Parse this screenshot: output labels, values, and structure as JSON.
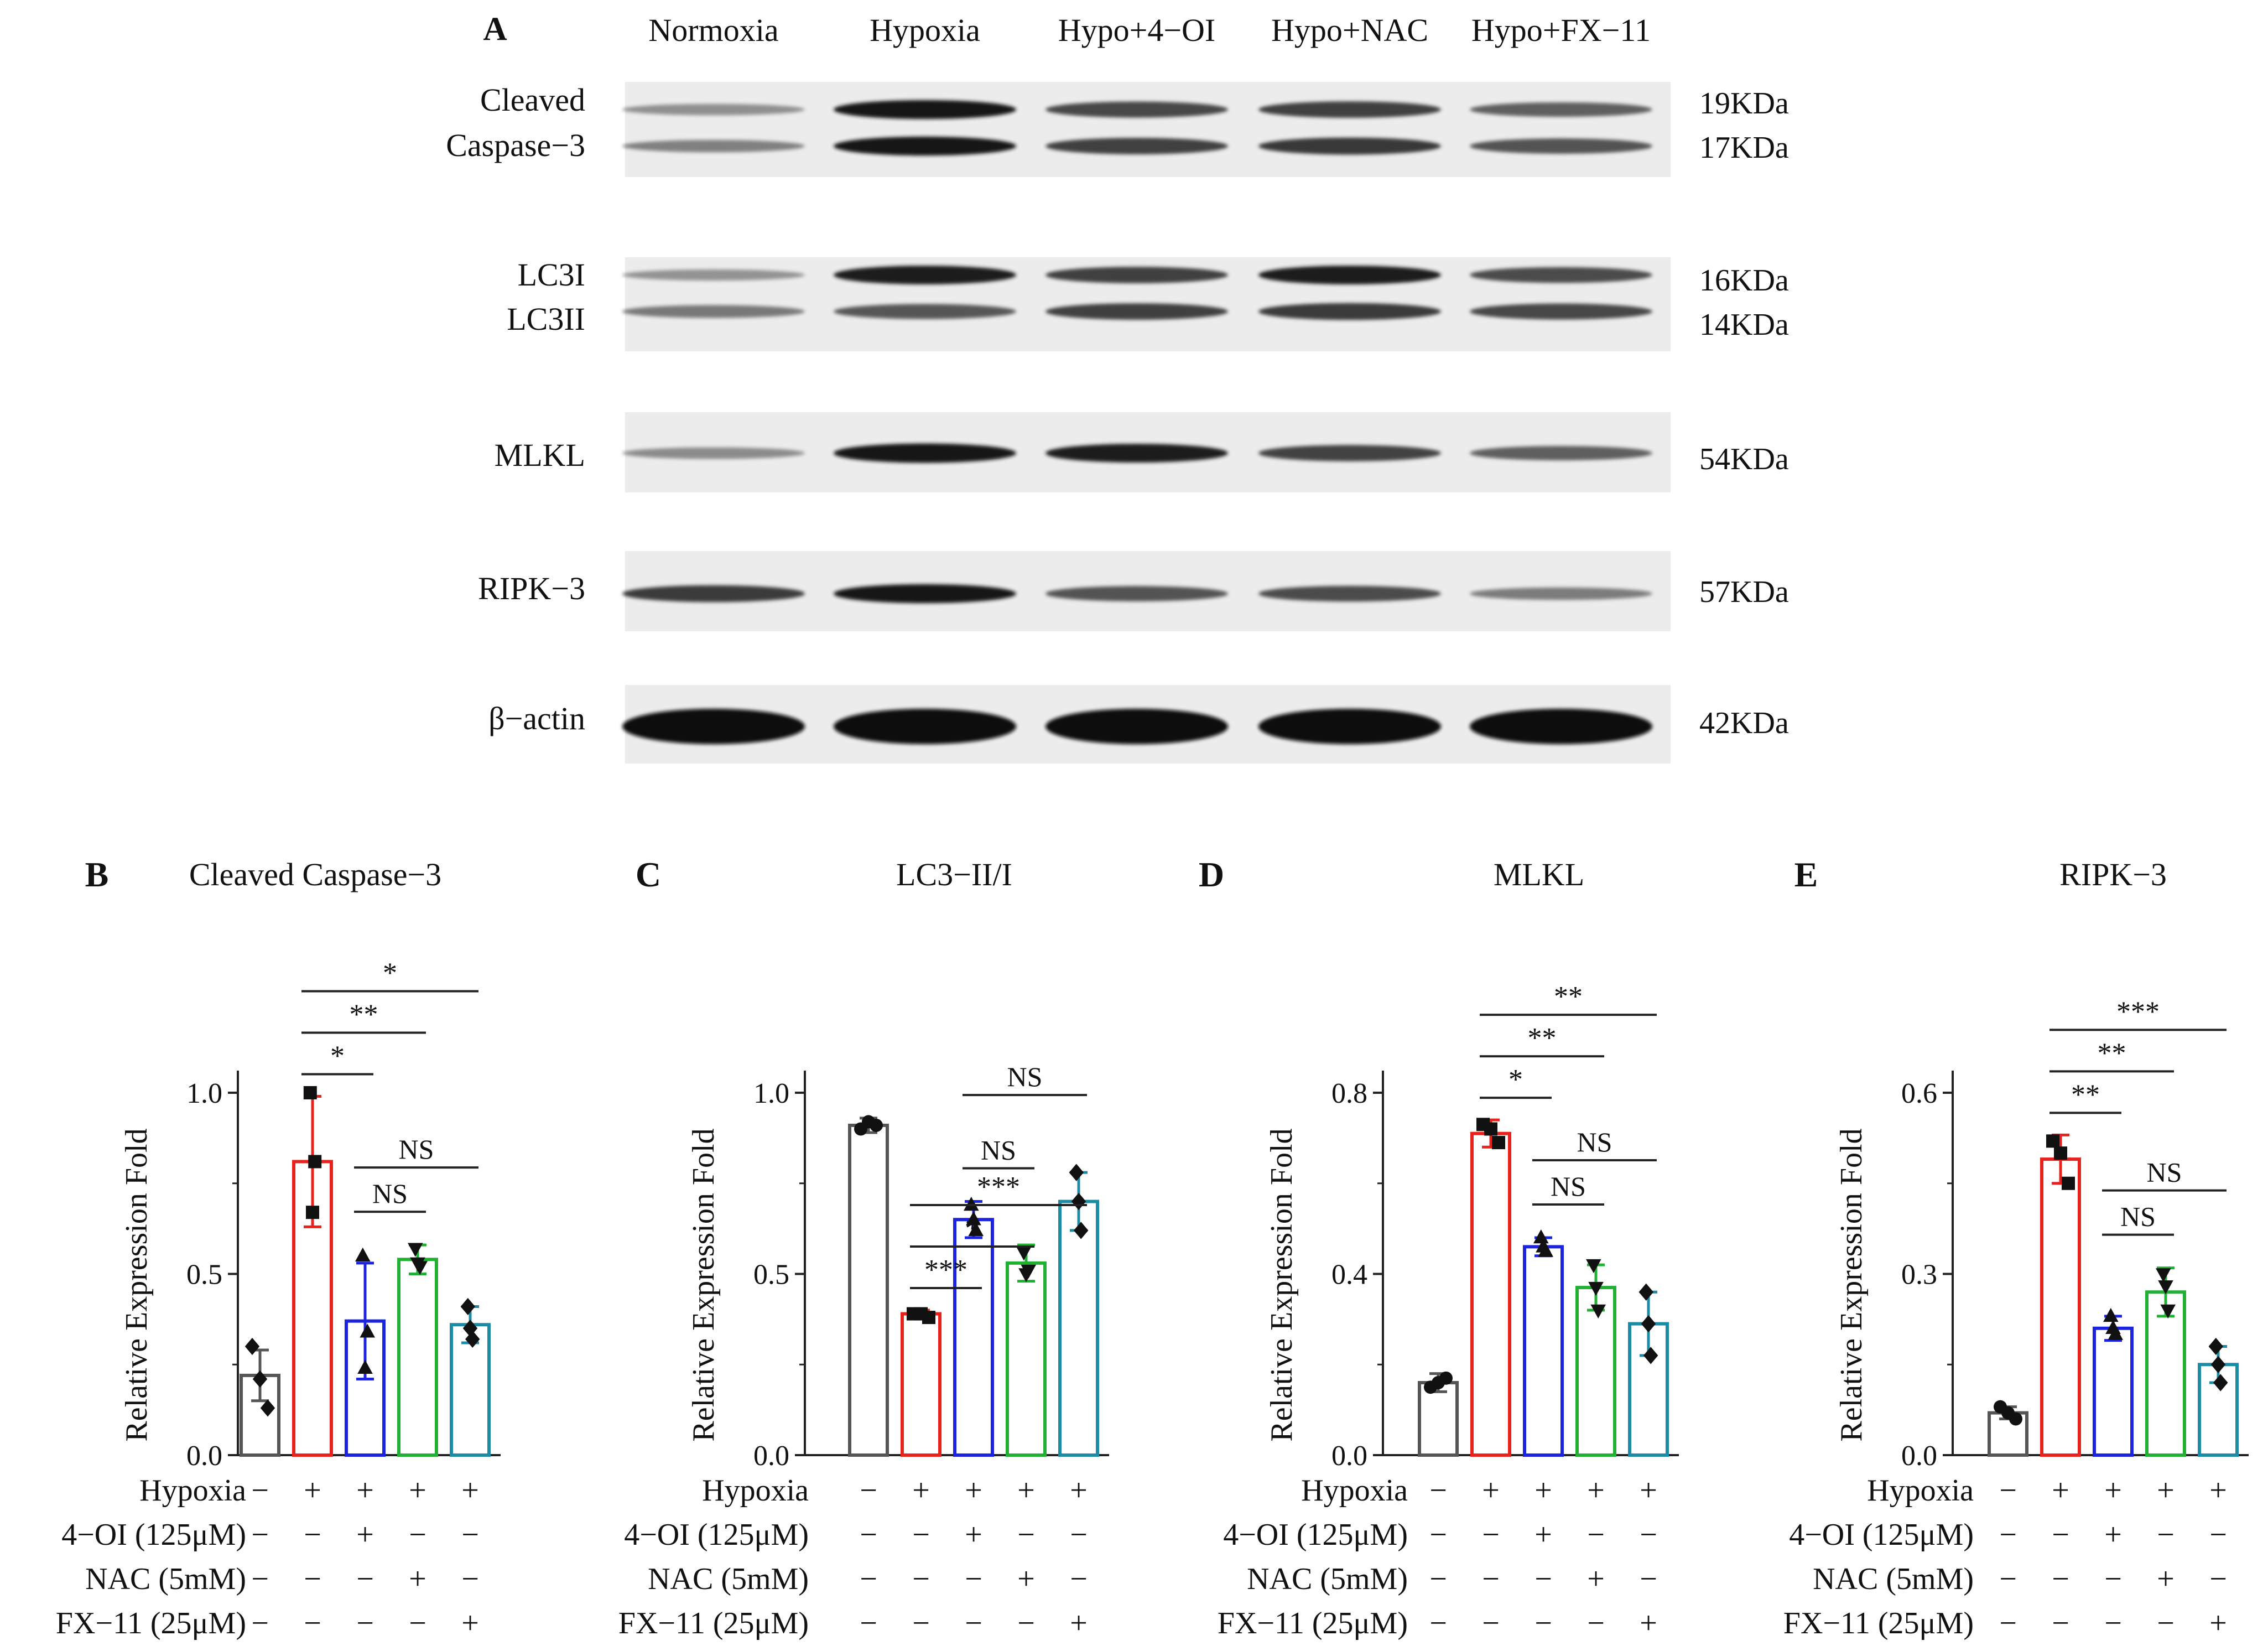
{
  "blot": {
    "panel_letter": "A",
    "lanes": [
      "Normoxia",
      "Hypoxia",
      "Hypo+4−OI",
      "Hypo+NAC",
      "Hypo+FX−11"
    ],
    "strips": [
      {
        "labels": [
          "Cleaved",
          "Caspase−3"
        ],
        "kda": [
          "19KDa",
          "17KDa"
        ],
        "bands": [
          [
            0.3,
            0.92,
            0.68,
            0.72,
            0.55
          ],
          [
            0.38,
            0.92,
            0.72,
            0.76,
            0.62
          ]
        ]
      },
      {
        "labels": [
          "LC3I",
          "LC3II"
        ],
        "kda": [
          "16KDa",
          "14KDa"
        ],
        "bands": [
          [
            0.28,
            0.9,
            0.72,
            0.9,
            0.66
          ],
          [
            0.42,
            0.6,
            0.72,
            0.75,
            0.68
          ]
        ]
      },
      {
        "labels": [
          "MLKL"
        ],
        "kda": [
          "54KDa"
        ],
        "bands": [
          [
            0.32,
            0.95,
            0.9,
            0.7,
            0.55
          ]
        ]
      },
      {
        "labels": [
          "RIPK−3"
        ],
        "kda": [
          "57KDa"
        ],
        "bands": [
          [
            0.75,
            0.92,
            0.62,
            0.66,
            0.4
          ]
        ]
      },
      {
        "labels": [
          "β−actin"
        ],
        "kda": [
          "42KDa"
        ],
        "bands": [
          [
            1.0,
            1.0,
            1.0,
            1.0,
            1.0
          ]
        ]
      }
    ]
  },
  "conditions": {
    "row_labels": [
      "Hypoxia",
      "4−OI (125μM)",
      "NAC (5mM)",
      "FX−11 (25μM)"
    ],
    "grid": [
      [
        "−",
        "+",
        "+",
        "+",
        "+"
      ],
      [
        "−",
        "−",
        "+",
        "−",
        "−"
      ],
      [
        "−",
        "−",
        "−",
        "+",
        "−"
      ],
      [
        "−",
        "−",
        "−",
        "−",
        "+"
      ]
    ]
  },
  "colors": [
    "#555555",
    "#e8221c",
    "#1c24e0",
    "#22b034",
    "#1c8ca6"
  ],
  "chart_data": [
    {
      "type": "bar",
      "panel_letter": "B",
      "title": "Cleaved Caspase−3",
      "ylabel": "Relative Expression Fold",
      "ylim": [
        0,
        1.0
      ],
      "yticks": [
        "0.0",
        "0.5",
        "1.0"
      ],
      "means": [
        0.22,
        0.81,
        0.37,
        0.54,
        0.36
      ],
      "sd": [
        0.07,
        0.18,
        0.16,
        0.04,
        0.05
      ],
      "marker_shapes": [
        "diamond",
        "square",
        "triangle",
        "triangle-down",
        "diamond"
      ],
      "points": [
        [
          0.3,
          0.13,
          0.21
        ],
        [
          1.0,
          0.81,
          0.67
        ],
        [
          0.55,
          0.34,
          0.24
        ],
        [
          0.57,
          0.52,
          0.53
        ],
        [
          0.41,
          0.32,
          0.35
        ]
      ],
      "comparisons": [
        {
          "from": 1,
          "to": 2,
          "label": "*"
        },
        {
          "from": 1,
          "to": 3,
          "label": "**"
        },
        {
          "from": 1,
          "to": 4,
          "label": "*"
        },
        {
          "from": 2,
          "to": 3,
          "label": "NS"
        },
        {
          "from": 2,
          "to": 4,
          "label": "NS"
        }
      ]
    },
    {
      "type": "bar",
      "panel_letter": "C",
      "title": "LC3−II/I",
      "ylabel": "Relative Expression Fold",
      "ylim": [
        0,
        1.0
      ],
      "yticks": [
        "0.0",
        "0.5",
        "1.0"
      ],
      "means": [
        0.91,
        0.39,
        0.65,
        0.53,
        0.7
      ],
      "sd": [
        0.02,
        0.01,
        0.05,
        0.05,
        0.08
      ],
      "marker_shapes": [
        "circle",
        "square",
        "triangle",
        "triangle-down",
        "diamond"
      ],
      "points": [
        [
          0.9,
          0.91,
          0.92
        ],
        [
          0.39,
          0.38,
          0.39
        ],
        [
          0.69,
          0.62,
          0.65
        ],
        [
          0.56,
          0.51,
          0.5
        ],
        [
          0.78,
          0.62,
          0.7
        ]
      ],
      "comparisons": [
        {
          "from": 1,
          "to": 2,
          "label": "***"
        },
        {
          "from": 1,
          "to": 3,
          "label": "*"
        },
        {
          "from": 1,
          "to": 4,
          "label": "***"
        },
        {
          "from": 2,
          "to": 3,
          "label": "NS"
        },
        {
          "from": 2,
          "to": 4,
          "label": "NS"
        }
      ]
    },
    {
      "type": "bar",
      "panel_letter": "D",
      "title": "MLKL",
      "ylabel": "Relative Expression Fold",
      "ylim": [
        0,
        0.8
      ],
      "yticks": [
        "0.0",
        "0.4",
        "0.8"
      ],
      "means": [
        0.16,
        0.71,
        0.46,
        0.37,
        0.29
      ],
      "sd": [
        0.02,
        0.03,
        0.02,
        0.05,
        0.07
      ],
      "marker_shapes": [
        "circle",
        "square",
        "triangle",
        "triangle-down",
        "diamond"
      ],
      "points": [
        [
          0.15,
          0.17,
          0.16
        ],
        [
          0.73,
          0.69,
          0.72
        ],
        [
          0.48,
          0.45,
          0.46
        ],
        [
          0.42,
          0.32,
          0.37
        ],
        [
          0.36,
          0.22,
          0.29
        ]
      ],
      "comparisons": [
        {
          "from": 1,
          "to": 2,
          "label": "*"
        },
        {
          "from": 1,
          "to": 3,
          "label": "**"
        },
        {
          "from": 1,
          "to": 4,
          "label": "**"
        },
        {
          "from": 2,
          "to": 3,
          "label": "NS"
        },
        {
          "from": 2,
          "to": 4,
          "label": "NS"
        }
      ]
    },
    {
      "type": "bar",
      "panel_letter": "E",
      "title": "RIPK−3",
      "ylabel": "Relative Expression Fold",
      "ylim": [
        0,
        0.6
      ],
      "yticks": [
        "0.0",
        "0.3",
        "0.6"
      ],
      "means": [
        0.07,
        0.49,
        0.21,
        0.27,
        0.15
      ],
      "sd": [
        0.01,
        0.04,
        0.02,
        0.04,
        0.03
      ],
      "marker_shapes": [
        "circle",
        "square",
        "triangle",
        "triangle-down",
        "diamond"
      ],
      "points": [
        [
          0.08,
          0.06,
          0.07
        ],
        [
          0.52,
          0.45,
          0.5
        ],
        [
          0.23,
          0.2,
          0.21
        ],
        [
          0.3,
          0.24,
          0.28
        ],
        [
          0.18,
          0.12,
          0.15
        ]
      ],
      "comparisons": [
        {
          "from": 1,
          "to": 2,
          "label": "**"
        },
        {
          "from": 1,
          "to": 3,
          "label": "**"
        },
        {
          "from": 1,
          "to": 4,
          "label": "***"
        },
        {
          "from": 2,
          "to": 3,
          "label": "NS"
        },
        {
          "from": 2,
          "to": 4,
          "label": "NS"
        }
      ]
    }
  ]
}
